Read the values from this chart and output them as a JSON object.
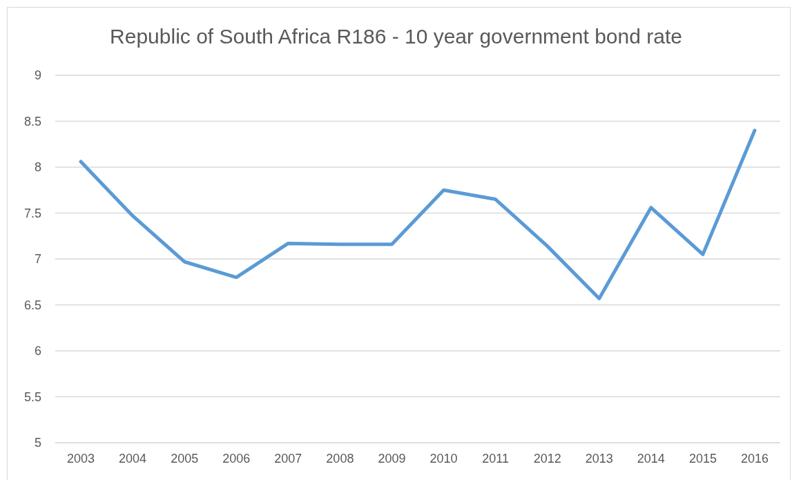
{
  "chart_data": {
    "type": "line",
    "title": "Republic of South Africa R186 - 10 year government bond rate",
    "categories": [
      "2003",
      "2004",
      "2005",
      "2006",
      "2007",
      "2008",
      "2009",
      "2010",
      "2011",
      "2012",
      "2013",
      "2014",
      "2015",
      "2016"
    ],
    "series": [
      {
        "color": "#5b9bd5",
        "values": [
          8.06,
          7.47,
          6.97,
          6.8,
          7.17,
          7.16,
          7.16,
          7.75,
          7.65,
          7.14,
          6.57,
          7.56,
          7.05,
          8.4
        ]
      }
    ],
    "ylim": [
      5,
      9
    ],
    "yticks": [
      5,
      5.5,
      6,
      6.5,
      7,
      7.5,
      8,
      8.5,
      9
    ],
    "grid": "y",
    "legend": false,
    "marker": "none",
    "line_style": "solid"
  }
}
